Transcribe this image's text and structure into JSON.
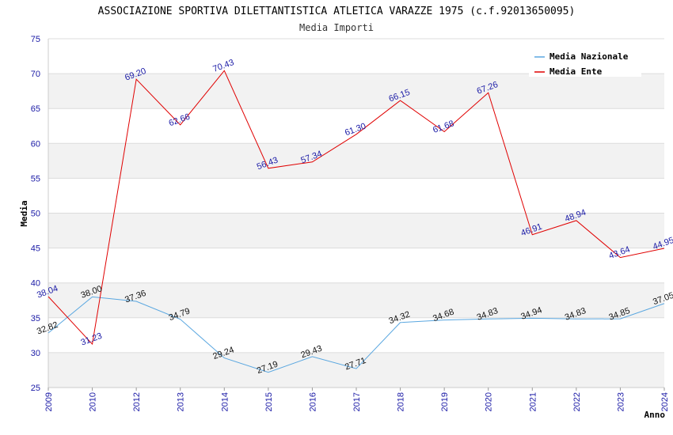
{
  "chart_data": {
    "type": "line",
    "title": "ASSOCIAZIONE SPORTIVA DILETTANTISTICA ATLETICA VARAZZE 1975 (c.f.92013650095)",
    "subtitle": "Media Importi",
    "xlabel": "Anno",
    "ylabel": "Media",
    "ylim": [
      25,
      75
    ],
    "yticks": [
      25,
      30,
      35,
      40,
      45,
      50,
      55,
      60,
      65,
      70,
      75
    ],
    "grid": true,
    "legend_position": "top-right",
    "categories": [
      "2009",
      "2010",
      "2012",
      "2013",
      "2014",
      "2015",
      "2016",
      "2017",
      "2018",
      "2019",
      "2020",
      "2021",
      "2022",
      "2023",
      "2024"
    ],
    "series": [
      {
        "name": "Media Nazionale",
        "color": "#5aa7e0",
        "values": [
          32.82,
          38.0,
          37.36,
          34.79,
          29.24,
          27.19,
          29.43,
          27.71,
          34.32,
          34.68,
          34.83,
          34.94,
          34.83,
          34.85,
          37.05
        ],
        "labels": [
          "32.82",
          "38.00",
          "37.36",
          "34.79",
          "29.24",
          "27.19",
          "29.43",
          "27.71",
          "34.32",
          "34.68",
          "34.83",
          "34.94",
          "34.83",
          "34.85",
          "37.05"
        ]
      },
      {
        "name": "Media Ente",
        "color": "#e00000",
        "values": [
          38.04,
          31.23,
          69.2,
          62.66,
          70.43,
          56.43,
          57.34,
          61.3,
          66.15,
          61.68,
          67.26,
          46.91,
          48.94,
          43.64,
          44.95
        ],
        "labels": [
          "38.04",
          "31.23",
          "69.20",
          "62.66",
          "70.43",
          "56.43",
          "57.34",
          "61.30",
          "66.15",
          "61.68",
          "67.26",
          "46.91",
          "48.94",
          "43.64",
          "44.95"
        ]
      }
    ]
  }
}
